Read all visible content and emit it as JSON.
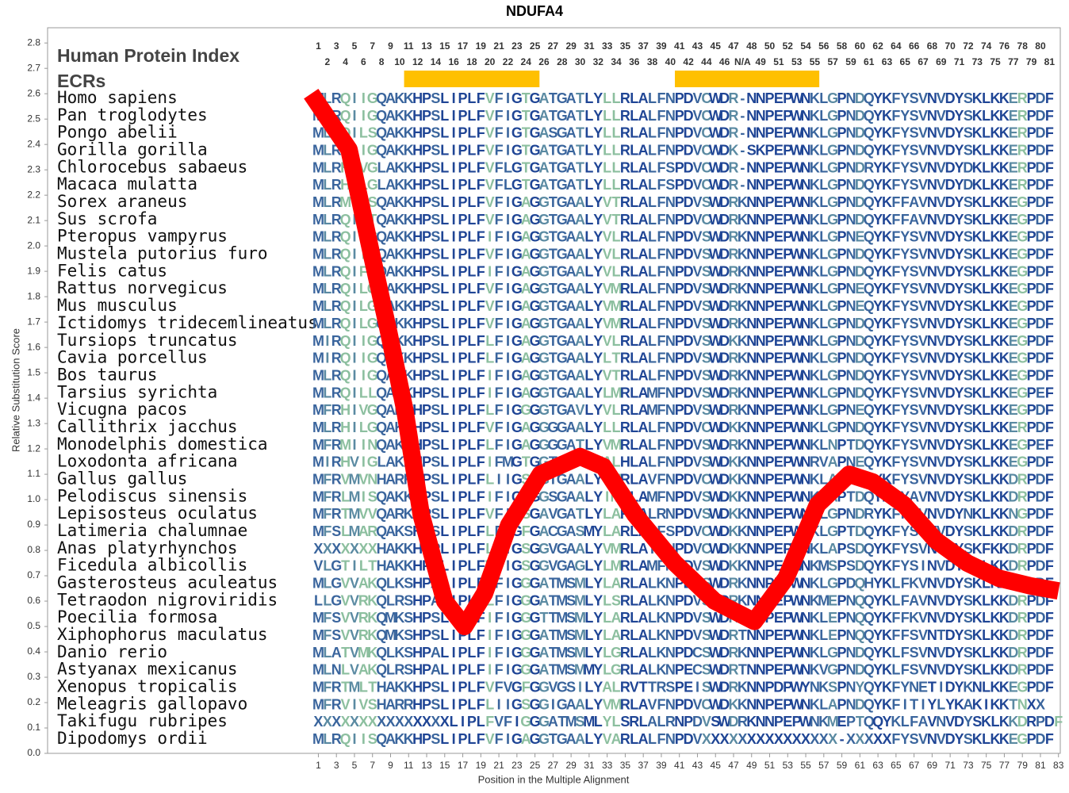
{
  "chart_data": {
    "type": "line",
    "title": "NDUFA4",
    "xlabel": "Position in the Multiple Alignment",
    "ylabel": "Relative Substitution Score",
    "row_header": "Human Protein Index",
    "ecr_label": "ECRs",
    "color": "#ff0000",
    "xlim": [
      -29,
      83.2
    ],
    "ylim": [
      0,
      2.86
    ],
    "xticks": [
      1,
      3,
      5,
      7,
      9,
      11,
      13,
      15,
      17,
      19,
      21,
      23,
      25,
      27,
      29,
      31,
      33,
      35,
      37,
      39,
      41,
      43,
      45,
      47,
      49,
      51,
      53,
      55,
      57,
      59,
      61,
      63,
      65,
      67,
      69,
      71,
      73,
      75,
      77,
      79,
      81,
      83
    ],
    "yticks": [
      {
        "value": 0,
        "label": "0.0"
      },
      0.1,
      0.2,
      0.3,
      0.4,
      0.5,
      0.6,
      0.7,
      0.8,
      0.9,
      {
        "value": 1,
        "label": "1.0"
      },
      1.1,
      1.2,
      1.3,
      1.4,
      1.5,
      1.6,
      1.7,
      1.8,
      1.9,
      {
        "value": 2,
        "label": "2.0"
      },
      2.1,
      2.2,
      2.3,
      2.4,
      2.5,
      2.6,
      2.7,
      2.8
    ],
    "x": [
      0.2,
      4.4,
      7.0,
      8.8,
      10.6,
      12.4,
      15.0,
      17.2,
      19.4,
      22.1,
      25.6,
      30.0,
      32.6,
      36.1,
      40.5,
      44.9,
      49.3,
      52.8,
      56.3,
      59.8,
      62.4,
      65.9,
      69.4,
      72.9,
      76.4,
      79.9,
      83.0
    ],
    "values": [
      2.6,
      2.38,
      1.95,
      1.66,
      1.35,
      0.94,
      0.6,
      0.5,
      0.63,
      0.9,
      1.1,
      1.17,
      1.13,
      0.94,
      0.75,
      0.6,
      0.52,
      0.69,
      0.98,
      1.1,
      1.07,
      0.98,
      0.84,
      0.75,
      0.69,
      0.66,
      0.64
    ],
    "position_labels": [
      1,
      2,
      3,
      4,
      5,
      6,
      7,
      8,
      9,
      10,
      11,
      12,
      13,
      14,
      15,
      16,
      17,
      18,
      19,
      20,
      21,
      22,
      23,
      24,
      25,
      26,
      27,
      28,
      29,
      30,
      31,
      32,
      33,
      34,
      35,
      36,
      37,
      38,
      39,
      40,
      41,
      42,
      43,
      44,
      45,
      46,
      47,
      "N/A",
      48,
      49,
      50,
      51,
      52,
      53,
      54,
      55,
      56,
      57,
      58,
      59,
      60,
      61,
      62,
      63,
      64,
      65,
      66,
      67,
      68,
      69,
      70,
      71,
      72,
      73,
      74,
      75,
      76,
      77,
      78,
      79,
      80,
      81
    ],
    "ecrs": [
      {
        "start": 11,
        "end": 25
      },
      {
        "start": 41,
        "end": 56
      }
    ],
    "species": [
      {
        "name": "Homo sapiens",
        "sequence": "MLRQIIGQAKKHPSLIPLFVFIGTGATGATLYLLRLALFNPDVCWDR-NNPEPWNKLGPNDQYKFYSVNVDYSKLKKERPDF"
      },
      {
        "name": "Pan troglodytes",
        "sequence": "MLRQIIGQAKKHPSLIPLFVFIGTGATGATLYLLRLALFNPDVCWDR-NNPEPWNKLGPNDQYKFYSVNVDYSKLKKERPDF"
      },
      {
        "name": "Pongo abelii",
        "sequence": "MLRQILSQAKKHPSLIPLFVFIGTGASGATLYLLRLALFNPDVCWDR-NNPEPWNKLGPNDQYKFYSVNVDYSKLKKERPDF"
      },
      {
        "name": "Gorilla gorilla",
        "sequence": "MLRQIIGQAKKHPSLIPLFVFIGTGATGATLYLLRLALFNPDVCWDK-SKPEPWNKLGPNDQYKFYSVNVDYSKLKKERPDF"
      },
      {
        "name": "Chlorocebus sabaeus",
        "sequence": "MLRHIVGLAKKHPSLIPLFVFLGTGATGATLYLLRLALFSPDVCWDR-NNPEPWNKLGPNDRYKFYSVNVDYDKLKKERPDF"
      },
      {
        "name": "Macaca mulatta",
        "sequence": "MLRHILGLAKKHPSLIPLFVFLGTGATGATLYLLRLALFSPDVCWDR-NNPEPWNKLGPNDQYKFYSVNVDYDKLKKERPDF"
      },
      {
        "name": "Sorex araneus",
        "sequence": "MLRMIFSQAKKHPSLIPLFVFIGAGGTGAALYVTRLALFNPDVSWDRKNNPEPWNKLGPNDQYKFFAVNVDYSKLKKEGPDF"
      },
      {
        "name": "Sus scrofa",
        "sequence": "MLRQIITQAKKHPSLIPLFVFIGAGGTGAALYVTRLALFNPDVCWDRKNNPEPWNKLGPNDQYKFFAVNVDYSKLKKEGPDF"
      },
      {
        "name": "Pteropus vampyrus",
        "sequence": "MLRQIVGQAKKHPSLIPLFIFIGAGGTGAALYVLRLALFNPDVSWDRKNNPEPWNKLGPNEQYKFYSVNVDYSKLKKEGPDF"
      },
      {
        "name": "Mustela putorius furo",
        "sequence": "MLRQIIGQAKKHPSLIPLFVFIGAGGTGAALYVLRLALFNPDVSWDRKNNPEPWNKLGPNDQYKFYSVNVDYSKLKKEGPDF"
      },
      {
        "name": "Felis catus",
        "sequence": "MLRQIFGQAKKHPSLIPLFIFIGAGGTGAALYVLRLALFNPDVSWDRKNNPEPWNKLGPNDQYKFYSVNVDYSKLKKEGPDF"
      },
      {
        "name": "Rattus norvegicus",
        "sequence": "MLRQILGQAKKHPSLIPLFVFIGAGGTGAALYVMRLALFNPDVSWDRKNNPEPWNKLGPNEQYKFYSVNVDYSKLKKEGPDF"
      },
      {
        "name": "Mus musculus",
        "sequence": "MLRQILGQAKKHPSLIPLFVFIGAGGTGAALYVMRLALFNPDVSWDRKNNPEPWNKLGPNEQYKFYSVNVDYSKLKKEGPDF"
      },
      {
        "name": "Ictidomys tridecemlineatus",
        "sequence": "MLRQILGQAKKHPSLIPLFVFIGAGGTGAALYVMRLALFNPDVSWDRKNNPEPWNKLGPNDQYKFYSVNVDYSKLKKEGPDF"
      },
      {
        "name": "Tursiops truncatus",
        "sequence": "MIRQIIGQAKKHPSLIPLFLFIGAGGTGAALYVLRLALFNPDVSWDKKNNPEPWNKLGPNDQYKFYSVNVDYSKLKKEGPDF"
      },
      {
        "name": "Cavia porcellus",
        "sequence": "MIRQIIGQAKKHPSLIPLFLFIGAGGTGAALYLTRLALFNPDVSWDRKNNPEPWNKLGPNDQYKFYSVNVDYSKLKKEGPDF"
      },
      {
        "name": "Bos taurus",
        "sequence": "MLRQIIGQAKKHPSLIPLFIFIGAGGTGAALYVTRLALFNPDVSWDRKNNPEPWNKLGPNDQYKFYSVNVDYSKLKKEGPDF"
      },
      {
        "name": "Tarsius syrichta",
        "sequence": "MLRQILLQAKKHPSLIPLFIFIGAGGTGAALYLMRLAMFNPDVSWDRKNNPEPWNKLGPNDQYKFYSVNVDYSKLKKEGPEF"
      },
      {
        "name": "Vicugna pacos",
        "sequence": "MFRHIVGQAKKHPSLIPLFLFIGGGGTGAVLYVLRLAMFNPDVSWDRKNNPEPWNKLGPNEQYKFYSVNVDYSKLKKEGPDF"
      },
      {
        "name": "Callithrix jacchus",
        "sequence": "MLRHILGQAKKHPSLIPLFVFIGAGGGGAALYLLRLALFNPDVCWDKKNNPEPWNKLGPNDQYKFYSVNVDYSKLKKERPDF"
      },
      {
        "name": "Monodelphis domestica",
        "sequence": "MFRMIINQAKKHPSLIPLFLFIGAGGGGATLYVMRLALFNPDVSWDRKNNPEPWNKLNPTDQYKFYSVNVDYSKLKKEGPEF"
      },
      {
        "name": "Loxodonta africana",
        "sequence": "MIRHVIGLAKKHPSLIPLFIFMGTGGTGAALYALHLALFNPDVSWDKKNNPEPWNRVAPNEQYKFYSVNVDYSKLKKEGPDF"
      },
      {
        "name": "Gallus gallus",
        "sequence": "MFRVMVNHARKHPSLIPLFLIIGSGGTGAALYVMRLAVFNPDVCWDKKNNPEPWNKLAPNDQYKFYSVNVDYSKLKKDRPDF"
      },
      {
        "name": "Pelodiscus sinensis",
        "sequence": "MFRLMISQAKKHPSLIPLFIFIGAGGSGAALYIMRLAMFNPDVSWDKKNNPEPWNKLAPTDQYKFYAVNVDYSKLKKDRPDF"
      },
      {
        "name": "Lepisosteus oculatus",
        "sequence": "MFRTMVVQARKHPSLIPLFVFIGSGAVGATLYLARLALRNPDVSWDKKNNPEPWNKLGPNDRYKFFAVNVDYNKLKKNGPDF"
      },
      {
        "name": "Latimeria chalumnae",
        "sequence": "MFSLMARQAKSHPSLIPLFLFIGFGACGASMYLARLALFSPDVCWDKKNNPEPWNKLGPTDQYKFYSVNVDYSKLKKDRPDF"
      },
      {
        "name": "Anas platyrhynchos",
        "sequence": "XXXXXXXHAKKHPPLIPLFLIIGSGGVGAALYVMRLAIFNPDVCWDKKNNPEPWNKLAPSDQYKFYSVNVDYSKFKKDRPDF"
      },
      {
        "name": "Ficedula albicollis",
        "sequence": "VLGTILTHAKKHPALIPLFVIIGSGGVGAGLYLMRLAMFNPDVSWDKKNNPEPWNKMSPSDQYKFYSINVDYSRLKKDRPDF"
      },
      {
        "name": "Gasterosteus aculeatus",
        "sequence": "MLGVVAKQLKSHPALIPLFIFIGGGATMSMLYLARLALKNPDVSWDRKNNPEPWNKLGPDQHYKLFKVNVDYSKLKKDRPDF"
      },
      {
        "name": "Tetraodon nigroviridis",
        "sequence": "LLGVVRKQLRSHPALIPLFLFIGGGATMSMLYLSRLALKNPDVSWDRKNNPEPWNKMEPNQQYKLFAVNVDYSKLKKDRPDF"
      },
      {
        "name": "Poecilia formosa",
        "sequence": "MFSVVRKQMKSHPSLIPLFIFIGGGTTMSMLYLARLALKNPDVSWDRTNNPEPWNKLEPNQQYKFFKVNVDYSKLKKDRPDF"
      },
      {
        "name": "Xiphophorus maculatus",
        "sequence": "MFSVVRKQMKSHPSLIPLFIFIGGGATMSMLYLARLALKNPDVSWDRTNNPEPWNKLEPNQQYKFFSVNTDYSKLKKDRPDF"
      },
      {
        "name": "Danio rerio",
        "sequence": "MLATVMKQLKSHPALIPLFIFIGGGATMSMLYLGRLALKNPDCSWDRKNNPEPWNKLGPNDQYKLFSVNVDYSKLKKDRPDF"
      },
      {
        "name": "Astyanax mexicanus",
        "sequence": "MLNLVAKQLRSHPALIPLFIFIGGGATMSMMYLGRLALKNPECSWDRTNNPEPWNKVGPNDQYKLFSVNVDYSKLKKDRPDF"
      },
      {
        "name": "Xenopus tropicalis",
        "sequence": "MFRTMLTHAKKHPSLIPLFVFVGFGGVGSILYALRVTTRSPEISWDRKNNPDPWYNKSPNYQYKFYNETIDYKNLKKEGPDF"
      },
      {
        "name": "Meleagris gallopavo",
        "sequence": "MFRVIVSHARRHPSLIPLFLIIGSGGIGAALYVMRLAVFNPDVCWDKKNNPEPWNKLAPNDQYKFITIYLYKAKIKKTNXX"
      },
      {
        "name": "Takifugu rubripes",
        "sequence": "XXXXXXXXXXXXXXXLIPLFVFIGGGATMSMLYLSRLALRNPDVSWDRKNNPEPWNKMEPTQQYKLFAVNVDYSKLKKDRPDF"
      },
      {
        "name": "Dipodomys ordii",
        "sequence": "MLRQIISQAKKHPSLIPLFVFIGAGGTGAALYVARLALFNPDVXXXXXXXXXXXXXXX-XXXXXFYSVNVDYSKLKKEGPDF"
      }
    ]
  }
}
